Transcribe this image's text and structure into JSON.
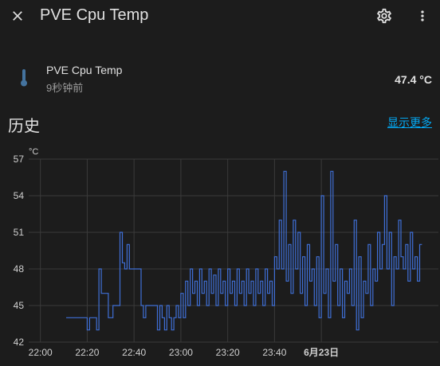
{
  "header": {
    "title": "PVE Cpu Temp",
    "close_icon": "close-icon",
    "settings_icon": "gear-icon",
    "more_icon": "dots-vertical-icon"
  },
  "entity": {
    "icon": "thermometer-icon",
    "name": "PVE Cpu Temp",
    "last_changed": "9秒钟前",
    "state": "47.4 °C"
  },
  "history": {
    "title": "历史",
    "show_more": "显示更多"
  },
  "colors": {
    "background": "#1c1c1c",
    "line": "#3f6fd6",
    "accent": "#03a9f4",
    "icon": "#44739e"
  },
  "chart_data": {
    "type": "line",
    "unit": "°C",
    "ylim": [
      42,
      57
    ],
    "yticks": [
      42,
      45,
      48,
      51,
      54,
      57
    ],
    "xlim_minutes": [
      -5,
      170
    ],
    "xticks": [
      {
        "label": "22:00",
        "minutes": 0,
        "bold": false
      },
      {
        "label": "22:20",
        "minutes": 20,
        "bold": false
      },
      {
        "label": "22:40",
        "minutes": 40,
        "bold": false
      },
      {
        "label": "23:00",
        "minutes": 60,
        "bold": false
      },
      {
        "label": "23:20",
        "minutes": 80,
        "bold": false
      },
      {
        "label": "23:40",
        "minutes": 100,
        "bold": false
      },
      {
        "label": "6月23日",
        "minutes": 120,
        "bold": true
      }
    ],
    "grid": true,
    "series": [
      {
        "name": "",
        "step": true,
        "points": [
          [
            11,
            44
          ],
          [
            20,
            44
          ],
          [
            20,
            43
          ],
          [
            21,
            43
          ],
          [
            21,
            44
          ],
          [
            24,
            44
          ],
          [
            24,
            43
          ],
          [
            25,
            43
          ],
          [
            25,
            48
          ],
          [
            26,
            48
          ],
          [
            26,
            46
          ],
          [
            29,
            46
          ],
          [
            29,
            44
          ],
          [
            31,
            44
          ],
          [
            31,
            45
          ],
          [
            34,
            45
          ],
          [
            34,
            51
          ],
          [
            35,
            51
          ],
          [
            35,
            48.5
          ],
          [
            36,
            48.5
          ],
          [
            36,
            48
          ],
          [
            37,
            48
          ],
          [
            37,
            50
          ],
          [
            38,
            50
          ],
          [
            38,
            48
          ],
          [
            43,
            48
          ],
          [
            43,
            45
          ],
          [
            44,
            45
          ],
          [
            44,
            44
          ],
          [
            45,
            44
          ],
          [
            45,
            45
          ],
          [
            50,
            45
          ],
          [
            50,
            43
          ],
          [
            51,
            43
          ],
          [
            51,
            45
          ],
          [
            52,
            45
          ],
          [
            52,
            44
          ],
          [
            53,
            44
          ],
          [
            53,
            43
          ],
          [
            54,
            43
          ],
          [
            54,
            45
          ],
          [
            55,
            45
          ],
          [
            55,
            44
          ],
          [
            56,
            44
          ],
          [
            56,
            43
          ],
          [
            57,
            43
          ],
          [
            57,
            44
          ],
          [
            58,
            44
          ],
          [
            58,
            45
          ],
          [
            59,
            45
          ],
          [
            59,
            44
          ],
          [
            60,
            44
          ],
          [
            60,
            46
          ],
          [
            61,
            46
          ],
          [
            61,
            44
          ],
          [
            62,
            44
          ],
          [
            62,
            47
          ],
          [
            63,
            47
          ],
          [
            63,
            45
          ],
          [
            64,
            45
          ],
          [
            64,
            48
          ],
          [
            65,
            48
          ],
          [
            65,
            46
          ],
          [
            66,
            46
          ],
          [
            66,
            47
          ],
          [
            67,
            47
          ],
          [
            67,
            45
          ],
          [
            68,
            45
          ],
          [
            68,
            48
          ],
          [
            69,
            48
          ],
          [
            69,
            46
          ],
          [
            70,
            46
          ],
          [
            70,
            47
          ],
          [
            71,
            47
          ],
          [
            71,
            45
          ],
          [
            72,
            45
          ],
          [
            72,
            48
          ],
          [
            73,
            48
          ],
          [
            73,
            46
          ],
          [
            74,
            46
          ],
          [
            74,
            47.5
          ],
          [
            75,
            47.5
          ],
          [
            75,
            45
          ],
          [
            76,
            45
          ],
          [
            76,
            48
          ],
          [
            77,
            48
          ],
          [
            77,
            46
          ],
          [
            78,
            46
          ],
          [
            78,
            47
          ],
          [
            79,
            47
          ],
          [
            79,
            45
          ],
          [
            80,
            45
          ],
          [
            80,
            48
          ],
          [
            81,
            48
          ],
          [
            81,
            46
          ],
          [
            82,
            46
          ],
          [
            82,
            47
          ],
          [
            83,
            47
          ],
          [
            83,
            45
          ],
          [
            84,
            45
          ],
          [
            84,
            48
          ],
          [
            85,
            48
          ],
          [
            85,
            46
          ],
          [
            86,
            46
          ],
          [
            86,
            47
          ],
          [
            87,
            47
          ],
          [
            87,
            45
          ],
          [
            88,
            45
          ],
          [
            88,
            48
          ],
          [
            89,
            48
          ],
          [
            89,
            46
          ],
          [
            90,
            46
          ],
          [
            90,
            47
          ],
          [
            91,
            47
          ],
          [
            91,
            45
          ],
          [
            92,
            45
          ],
          [
            92,
            48
          ],
          [
            93,
            48
          ],
          [
            93,
            46
          ],
          [
            94,
            46
          ],
          [
            94,
            47
          ],
          [
            95,
            47
          ],
          [
            95,
            45
          ],
          [
            96,
            45
          ],
          [
            96,
            48
          ],
          [
            97,
            48
          ],
          [
            97,
            46
          ],
          [
            98,
            46
          ],
          [
            98,
            47
          ],
          [
            99,
            47
          ],
          [
            99,
            45
          ],
          [
            100,
            45
          ],
          [
            100,
            49
          ],
          [
            101,
            49
          ],
          [
            101,
            48
          ],
          [
            102,
            48
          ],
          [
            102,
            52
          ],
          [
            103,
            52
          ],
          [
            103,
            48
          ],
          [
            104,
            48
          ],
          [
            104,
            56
          ],
          [
            105,
            56
          ],
          [
            105,
            47
          ],
          [
            106,
            47
          ],
          [
            106,
            50
          ],
          [
            107,
            50
          ],
          [
            107,
            46
          ],
          [
            108,
            46
          ],
          [
            108,
            52
          ],
          [
            109,
            52
          ],
          [
            109,
            48
          ],
          [
            110,
            48
          ],
          [
            110,
            51
          ],
          [
            111,
            51
          ],
          [
            111,
            46
          ],
          [
            112,
            46
          ],
          [
            112,
            49
          ],
          [
            113,
            49
          ],
          [
            113,
            45
          ],
          [
            114,
            45
          ],
          [
            114,
            50
          ],
          [
            115,
            50
          ],
          [
            115,
            47
          ],
          [
            116,
            47
          ],
          [
            116,
            48
          ],
          [
            117,
            48
          ],
          [
            117,
            45
          ],
          [
            118,
            45
          ],
          [
            118,
            49
          ],
          [
            119,
            49
          ],
          [
            119,
            44
          ],
          [
            120,
            44
          ],
          [
            120,
            54
          ],
          [
            121,
            54
          ],
          [
            121,
            46
          ],
          [
            122,
            46
          ],
          [
            122,
            48
          ],
          [
            123,
            48
          ],
          [
            123,
            44
          ],
          [
            124,
            44
          ],
          [
            124,
            56
          ],
          [
            125,
            56
          ],
          [
            125,
            47
          ],
          [
            126,
            47
          ],
          [
            126,
            50
          ],
          [
            127,
            50
          ],
          [
            127,
            45
          ],
          [
            128,
            45
          ],
          [
            128,
            48
          ],
          [
            129,
            48
          ],
          [
            129,
            44
          ],
          [
            130,
            44
          ],
          [
            130,
            47
          ],
          [
            131,
            47
          ],
          [
            131,
            46
          ],
          [
            132,
            46
          ],
          [
            132,
            48
          ],
          [
            133,
            48
          ],
          [
            133,
            45
          ],
          [
            134,
            45
          ],
          [
            134,
            52
          ],
          [
            135,
            52
          ],
          [
            135,
            43
          ],
          [
            136,
            43
          ],
          [
            136,
            49
          ],
          [
            137,
            49
          ],
          [
            137,
            44
          ],
          [
            138,
            44
          ],
          [
            138,
            47
          ],
          [
            139,
            47
          ],
          [
            139,
            46
          ],
          [
            140,
            46
          ],
          [
            140,
            50
          ],
          [
            141,
            50
          ],
          [
            141,
            45
          ],
          [
            142,
            45
          ],
          [
            142,
            48
          ],
          [
            143,
            48
          ],
          [
            143,
            47
          ],
          [
            144,
            47
          ],
          [
            144,
            51
          ],
          [
            145,
            51
          ],
          [
            145,
            48
          ],
          [
            146,
            48
          ],
          [
            146,
            50
          ],
          [
            147,
            50
          ],
          [
            147,
            54
          ],
          [
            148,
            54
          ],
          [
            148,
            48
          ],
          [
            149,
            48
          ],
          [
            149,
            51
          ],
          [
            150,
            51
          ],
          [
            150,
            45
          ],
          [
            151,
            45
          ],
          [
            151,
            49
          ],
          [
            152,
            49
          ],
          [
            152,
            48
          ],
          [
            153,
            48
          ],
          [
            153,
            52
          ],
          [
            154,
            52
          ],
          [
            154,
            49
          ],
          [
            155,
            49
          ],
          [
            155,
            48
          ],
          [
            156,
            48
          ],
          [
            156,
            50
          ],
          [
            157,
            50
          ],
          [
            157,
            47
          ],
          [
            158,
            47
          ],
          [
            158,
            51
          ],
          [
            159,
            51
          ],
          [
            159,
            48
          ],
          [
            160,
            48
          ],
          [
            160,
            49
          ],
          [
            161,
            49
          ],
          [
            161,
            47
          ],
          [
            162,
            47
          ],
          [
            162,
            50
          ],
          [
            163,
            50
          ]
        ]
      }
    ]
  }
}
